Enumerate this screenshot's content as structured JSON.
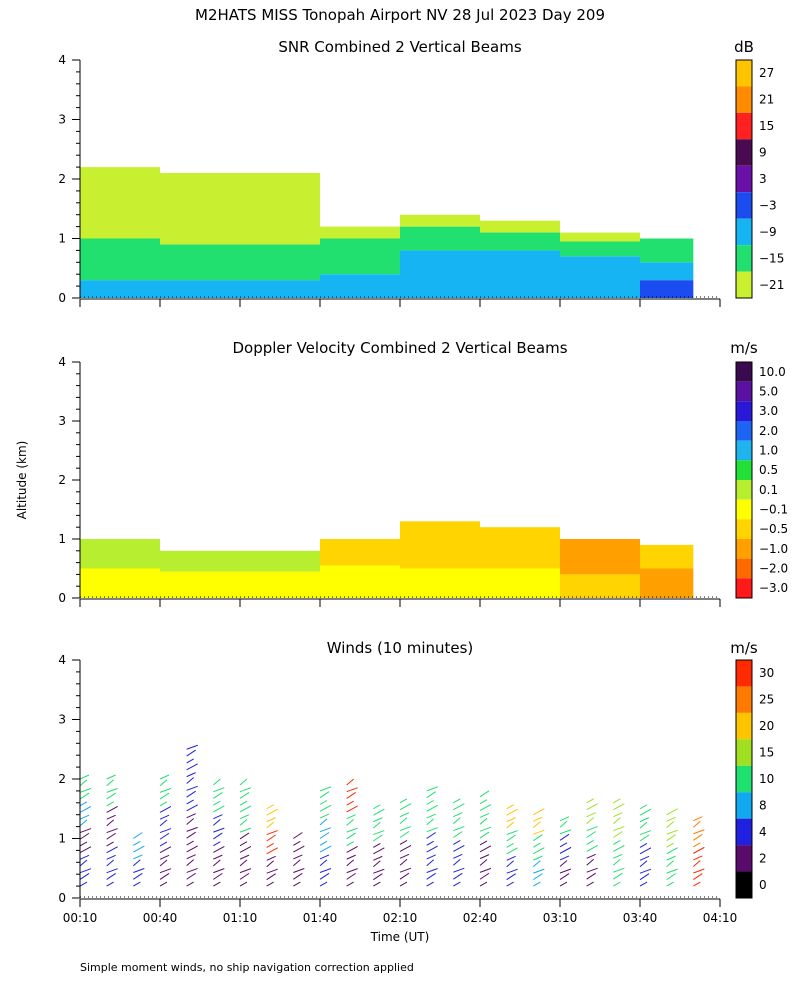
{
  "figure": {
    "title": "M2HATS MISS Tonopah Airport NV  28 Jul 2023 Day 209",
    "footnote": "Simple moment winds, no ship navigation correction applied",
    "ylabel": "Altitude (km)",
    "xlabel": "Time (UT)"
  },
  "chart_data": [
    {
      "type": "heatmap",
      "title": "SNR Combined 2 Vertical Beams",
      "ylabel": "Altitude (km)",
      "units": "dB",
      "xlim": [
        "00:10",
        "04:10"
      ],
      "ylim": [
        0,
        4
      ],
      "yticks": [
        "0",
        "1",
        "2",
        "3",
        "4"
      ],
      "colorbar": {
        "labels": [
          "27",
          "21",
          "15",
          "9",
          "3",
          "−3",
          "−9",
          "−15",
          "−21"
        ],
        "colors": [
          "#ffc400",
          "#ff8c00",
          "#ff2020",
          "#4a0a52",
          "#6a10a8",
          "#1a4cf0",
          "#16b4f2",
          "#22e070",
          "#c8f030"
        ]
      },
      "field": [
        {
          "start": "00:10",
          "end": "00:40",
          "bins": [
            {
              "top": 0.3,
              "color": "#16b4f2"
            },
            {
              "top": 1.0,
              "color": "#22e070"
            },
            {
              "top": 2.2,
              "color": "#c8f030"
            }
          ]
        },
        {
          "start": "00:40",
          "end": "01:40",
          "bins": [
            {
              "top": 0.3,
              "color": "#16b4f2"
            },
            {
              "top": 0.9,
              "color": "#22e070"
            },
            {
              "top": 2.1,
              "color": "#c8f030"
            }
          ]
        },
        {
          "start": "01:40",
          "end": "02:10",
          "bins": [
            {
              "top": 0.4,
              "color": "#16b4f2"
            },
            {
              "top": 1.0,
              "color": "#22e070"
            },
            {
              "top": 1.2,
              "color": "#c8f030"
            }
          ]
        },
        {
          "start": "02:10",
          "end": "02:40",
          "bins": [
            {
              "top": 0.8,
              "color": "#16b4f2"
            },
            {
              "top": 1.2,
              "color": "#22e070"
            },
            {
              "top": 1.4,
              "color": "#c8f030"
            }
          ]
        },
        {
          "start": "02:40",
          "end": "03:10",
          "bins": [
            {
              "top": 0.8,
              "color": "#16b4f2"
            },
            {
              "top": 1.1,
              "color": "#22e070"
            },
            {
              "top": 1.3,
              "color": "#c8f030"
            }
          ]
        },
        {
          "start": "03:10",
          "end": "03:40",
          "bins": [
            {
              "top": 0.7,
              "color": "#16b4f2"
            },
            {
              "top": 0.95,
              "color": "#22e070"
            },
            {
              "top": 1.1,
              "color": "#c8f030"
            }
          ]
        },
        {
          "start": "03:40",
          "end": "04:00",
          "bins": [
            {
              "top": 0.3,
              "color": "#1a4cf0"
            },
            {
              "top": 0.6,
              "color": "#16b4f2"
            },
            {
              "top": 1.0,
              "color": "#22e070"
            }
          ]
        }
      ]
    },
    {
      "type": "heatmap",
      "title": "Doppler Velocity Combined 2 Vertical Beams",
      "ylabel": "Altitude (km)",
      "units": "m/s",
      "xlim": [
        "00:10",
        "04:10"
      ],
      "ylim": [
        0,
        4
      ],
      "yticks": [
        "0",
        "1",
        "2",
        "3",
        "4"
      ],
      "colorbar": {
        "labels": [
          "10.0",
          "5.0",
          "3.0",
          "2.0",
          "1.0",
          "0.5",
          "0.1",
          "−0.1",
          "−0.5",
          "−1.0",
          "−2.0",
          "−3.0"
        ],
        "colors": [
          "#3a0a4e",
          "#5a10a0",
          "#2a18d8",
          "#1e64f4",
          "#20b4ee",
          "#22e038",
          "#b8ee30",
          "#ffff00",
          "#ffd400",
          "#ffa000",
          "#ff6a00",
          "#ff1a1a"
        ]
      },
      "field": [
        {
          "start": "00:10",
          "end": "00:40",
          "bins": [
            {
              "top": 0.5,
              "color": "#ffff00"
            },
            {
              "top": 1.0,
              "color": "#b8ee30"
            }
          ]
        },
        {
          "start": "00:40",
          "end": "01:40",
          "bins": [
            {
              "top": 0.45,
              "color": "#ffff00"
            },
            {
              "top": 0.8,
              "color": "#b8ee30"
            }
          ]
        },
        {
          "start": "01:40",
          "end": "02:10",
          "bins": [
            {
              "top": 0.55,
              "color": "#ffff00"
            },
            {
              "top": 1.0,
              "color": "#ffd400"
            }
          ]
        },
        {
          "start": "02:10",
          "end": "02:40",
          "bins": [
            {
              "top": 0.5,
              "color": "#ffff00"
            },
            {
              "top": 1.3,
              "color": "#ffd400"
            }
          ]
        },
        {
          "start": "02:40",
          "end": "03:10",
          "bins": [
            {
              "top": 0.5,
              "color": "#ffff00"
            },
            {
              "top": 1.2,
              "color": "#ffd400"
            }
          ]
        },
        {
          "start": "03:10",
          "end": "03:40",
          "bins": [
            {
              "top": 0.4,
              "color": "#ffd400"
            },
            {
              "top": 1.0,
              "color": "#ffa000"
            }
          ]
        },
        {
          "start": "03:40",
          "end": "04:00",
          "bins": [
            {
              "top": 0.5,
              "color": "#ffa000"
            },
            {
              "top": 0.9,
              "color": "#ffd400"
            }
          ]
        }
      ]
    },
    {
      "type": "scatter",
      "title": "Winds (10 minutes)",
      "ylabel": "Altitude (km)",
      "xlabel": "Time (UT)",
      "units": "m/s",
      "xlim": [
        "00:10",
        "04:10"
      ],
      "ylim": [
        0,
        4
      ],
      "yticks": [
        "0",
        "1",
        "2",
        "3",
        "4"
      ],
      "xticks": [
        "00:10",
        "00:40",
        "01:10",
        "01:40",
        "02:10",
        "02:40",
        "03:10",
        "03:40",
        "04:10"
      ],
      "colorbar": {
        "labels": [
          "30",
          "25",
          "20",
          "15",
          "10",
          "8",
          "4",
          "2",
          "0"
        ],
        "colors": [
          "#ff2a00",
          "#ff7a00",
          "#ffc400",
          "#a0e020",
          "#20e070",
          "#10a8f0",
          "#2020e0",
          "#5a0a6a",
          "#000000"
        ]
      },
      "profiles": [
        {
          "time": "00:10",
          "top": 2.0,
          "colors": [
            "#2020e0",
            "#5a0a6a",
            "#10a8f0",
            "#20e070"
          ]
        },
        {
          "time": "00:20",
          "top": 2.0,
          "colors": [
            "#2020e0",
            "#5a0a6a",
            "#20e070"
          ]
        },
        {
          "time": "00:30",
          "top": 1.0,
          "colors": [
            "#2020e0",
            "#10a8f0"
          ]
        },
        {
          "time": "00:40",
          "top": 2.0,
          "colors": [
            "#5a0a6a",
            "#2020e0",
            "#20e070"
          ]
        },
        {
          "time": "00:50",
          "top": 2.5,
          "colors": [
            "#5a0a6a",
            "#2020e0"
          ]
        },
        {
          "time": "01:00",
          "top": 1.9,
          "colors": [
            "#5a0a6a",
            "#2020e0",
            "#20e070"
          ]
        },
        {
          "time": "01:10",
          "top": 1.9,
          "colors": [
            "#5a0a6a",
            "#20e070"
          ]
        },
        {
          "time": "01:20",
          "top": 1.5,
          "colors": [
            "#5a0a6a",
            "#ff2a00",
            "#ffc400"
          ]
        },
        {
          "time": "01:30",
          "top": 1.0,
          "colors": [
            "#5a0a6a"
          ]
        },
        {
          "time": "01:40",
          "top": 1.8,
          "colors": [
            "#2020e0",
            "#10a8f0",
            "#20e070"
          ]
        },
        {
          "time": "01:50",
          "top": 1.9,
          "colors": [
            "#5a0a6a",
            "#20e070",
            "#ff2a00"
          ]
        },
        {
          "time": "02:00",
          "top": 1.5,
          "colors": [
            "#5a0a6a",
            "#20e070"
          ]
        },
        {
          "time": "02:10",
          "top": 1.6,
          "colors": [
            "#5a0a6a",
            "#20e070"
          ]
        },
        {
          "time": "02:20",
          "top": 1.8,
          "colors": [
            "#2020e0",
            "#20e070"
          ]
        },
        {
          "time": "02:30",
          "top": 1.6,
          "colors": [
            "#2020e0",
            "#20e070"
          ]
        },
        {
          "time": "02:40",
          "top": 1.7,
          "colors": [
            "#5a0a6a",
            "#20e070"
          ]
        },
        {
          "time": "02:50",
          "top": 1.5,
          "colors": [
            "#2020e0",
            "#20e070",
            "#ffc400"
          ]
        },
        {
          "time": "03:00",
          "top": 1.4,
          "colors": [
            "#10a8f0",
            "#20e070",
            "#ffc400"
          ]
        },
        {
          "time": "03:10",
          "top": 1.3,
          "colors": [
            "#5a0a6a",
            "#2020e0",
            "#20e070"
          ]
        },
        {
          "time": "03:20",
          "top": 1.6,
          "colors": [
            "#5a0a6a",
            "#20e070",
            "#a0e020"
          ]
        },
        {
          "time": "03:30",
          "top": 1.6,
          "colors": [
            "#20e070",
            "#a0e020"
          ]
        },
        {
          "time": "03:40",
          "top": 1.5,
          "colors": [
            "#2020e0",
            "#20e070"
          ]
        },
        {
          "time": "03:50",
          "top": 1.4,
          "colors": [
            "#20e070",
            "#a0e020"
          ]
        },
        {
          "time": "04:00",
          "top": 1.3,
          "colors": [
            "#ff2a00",
            "#ff7a00"
          ]
        }
      ]
    }
  ]
}
